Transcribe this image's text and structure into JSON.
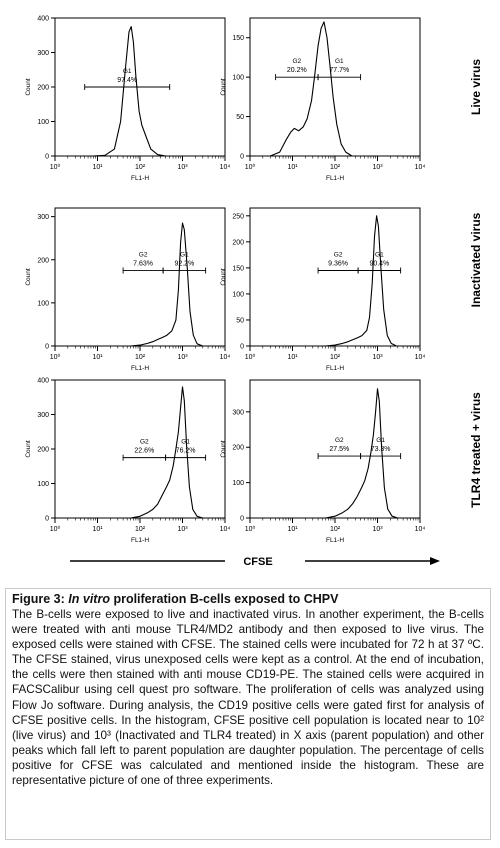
{
  "row_labels": [
    "Live virus",
    "Inactivated virus",
    "TLR4 treated + virus"
  ],
  "axis_caption": "CFSE",
  "colors": {
    "curve": "#000000",
    "axis": "#000000",
    "caption_border": "#c9c9c9"
  },
  "chart_data": [
    {
      "type": "area",
      "row": 0,
      "col": 0,
      "xlabel": "FL1-H",
      "ylabel": "Count",
      "xscale": "log",
      "xlim": [
        1,
        10000
      ],
      "ylim": [
        0,
        400
      ],
      "xticks": [
        "10^0",
        "10^1",
        "10^2",
        "10^3",
        "10^4"
      ],
      "yticks": [
        "0",
        "100",
        "200",
        "300",
        "400"
      ],
      "gates": [
        {
          "label": "G1",
          "percent": "97.4%",
          "range": [
            5,
            500
          ],
          "level": 200
        }
      ],
      "x": [
        8,
        15,
        25,
        35,
        45,
        55,
        62,
        70,
        80,
        95,
        110,
        140,
        180,
        260,
        400
      ],
      "y": [
        0,
        2,
        20,
        100,
        250,
        360,
        375,
        330,
        230,
        130,
        90,
        55,
        20,
        4,
        0
      ]
    },
    {
      "type": "area",
      "row": 0,
      "col": 1,
      "xlabel": "FL1-H",
      "ylabel": "Count",
      "xscale": "log",
      "xlim": [
        1,
        10000
      ],
      "ylim": [
        0,
        175
      ],
      "xticks": [
        "10^0",
        "10^1",
        "10^2",
        "10^3",
        "10^4"
      ],
      "yticks": [
        "0",
        "50",
        "100",
        "150"
      ],
      "gates": [
        {
          "label": "G2",
          "percent": "20.2%",
          "range": [
            4,
            40
          ],
          "level": 100
        },
        {
          "label": "G1",
          "percent": "77.7%",
          "range": [
            40,
            400
          ],
          "level": 100
        }
      ],
      "x": [
        3,
        5,
        7,
        9,
        11,
        14,
        18,
        22,
        28,
        33,
        40,
        47,
        55,
        65,
        75,
        90,
        110,
        140,
        180,
        250
      ],
      "y": [
        0,
        5,
        20,
        30,
        35,
        32,
        37,
        47,
        70,
        100,
        140,
        162,
        170,
        150,
        118,
        75,
        40,
        15,
        5,
        0
      ]
    },
    {
      "type": "area",
      "row": 1,
      "col": 0,
      "xlabel": "FL1-H",
      "ylabel": "Count",
      "xscale": "log",
      "xlim": [
        1,
        10000
      ],
      "ylim": [
        0,
        320
      ],
      "xticks": [
        "10^0",
        "10^1",
        "10^2",
        "10^3",
        "10^4"
      ],
      "yticks": [
        "0",
        "100",
        "200",
        "300"
      ],
      "gates": [
        {
          "label": "G2",
          "percent": "7.63%",
          "range": [
            40,
            350
          ],
          "level": 175
        },
        {
          "label": "G1",
          "percent": "92.2%",
          "range": [
            350,
            3500
          ],
          "level": 175
        }
      ],
      "x": [
        60,
        100,
        150,
        200,
        260,
        340,
        430,
        560,
        700,
        800,
        900,
        1000,
        1100,
        1300,
        1500,
        1800,
        2200,
        3000
      ],
      "y": [
        0,
        2,
        6,
        10,
        15,
        20,
        25,
        35,
        60,
        130,
        240,
        285,
        270,
        180,
        80,
        25,
        5,
        0
      ]
    },
    {
      "type": "area",
      "row": 1,
      "col": 1,
      "xlabel": "FL1-H",
      "ylabel": "Count",
      "xscale": "log",
      "xlim": [
        1,
        10000
      ],
      "ylim": [
        0,
        265
      ],
      "xticks": [
        "10^0",
        "10^1",
        "10^2",
        "10^3",
        "10^4"
      ],
      "yticks": [
        "0",
        "50",
        "100",
        "150",
        "200",
        "250"
      ],
      "gates": [
        {
          "label": "G2",
          "percent": "9.36%",
          "range": [
            40,
            350
          ],
          "level": 145
        },
        {
          "label": "G1",
          "percent": "90.4%",
          "range": [
            350,
            3500
          ],
          "level": 145
        }
      ],
      "x": [
        60,
        100,
        150,
        200,
        260,
        340,
        430,
        560,
        650,
        750,
        850,
        950,
        1050,
        1200,
        1400,
        1700,
        2100,
        2800
      ],
      "y": [
        0,
        2,
        5,
        8,
        12,
        16,
        20,
        30,
        55,
        120,
        210,
        250,
        230,
        150,
        70,
        20,
        5,
        0
      ]
    },
    {
      "type": "area",
      "row": 2,
      "col": 0,
      "xlabel": "FL1-H",
      "ylabel": "Count",
      "xscale": "log",
      "xlim": [
        1,
        10000
      ],
      "ylim": [
        0,
        400
      ],
      "xticks": [
        "10^0",
        "10^1",
        "10^2",
        "10^3",
        "10^4"
      ],
      "yticks": [
        "0",
        "100",
        "200",
        "300",
        "400"
      ],
      "gates": [
        {
          "label": "G2",
          "percent": "22.6%",
          "range": [
            40,
            400
          ],
          "level": 175
        },
        {
          "label": "G1",
          "percent": "76.2%",
          "range": [
            400,
            3500
          ],
          "level": 175
        }
      ],
      "x": [
        60,
        100,
        150,
        200,
        260,
        330,
        420,
        500,
        600,
        700,
        800,
        900,
        1000,
        1100,
        1250,
        1450,
        1750,
        2200,
        3000
      ],
      "y": [
        0,
        5,
        15,
        25,
        40,
        65,
        90,
        110,
        150,
        200,
        250,
        320,
        380,
        340,
        210,
        90,
        25,
        5,
        0
      ]
    },
    {
      "type": "area",
      "row": 2,
      "col": 1,
      "xlabel": "FL1-H",
      "ylabel": "Count",
      "xscale": "log",
      "xlim": [
        1,
        10000
      ],
      "ylim": [
        0,
        390
      ],
      "xticks": [
        "10^0",
        "10^1",
        "10^2",
        "10^3",
        "10^4"
      ],
      "yticks": [
        "0",
        "100",
        "200",
        "300"
      ],
      "gates": [
        {
          "label": "G2",
          "percent": "27.5%",
          "range": [
            40,
            400
          ],
          "level": 175
        },
        {
          "label": "G1",
          "percent": "73.3%",
          "range": [
            400,
            3500
          ],
          "level": 175
        }
      ],
      "x": [
        60,
        100,
        150,
        200,
        260,
        330,
        420,
        500,
        600,
        700,
        800,
        900,
        1000,
        1100,
        1250,
        1450,
        1750,
        2200,
        3000
      ],
      "y": [
        0,
        5,
        15,
        25,
        40,
        60,
        85,
        105,
        140,
        185,
        235,
        300,
        365,
        330,
        200,
        85,
        25,
        5,
        0
      ]
    }
  ],
  "caption": {
    "figure_label": "Figure 3:",
    "title_italic": "In vitro",
    "title_rest": "proliferation B-cells exposed to CHPV",
    "body": "The B-cells were exposed to live and inactivated virus. In another experiment, the B-cells were treated with anti mouse TLR4/MD2 antibody and then exposed to live virus.  The exposed cells were stained with CFSE. The stained cells were incubated for 72 h at 37 ºC. The CFSE stained, virus unexposed cells were kept as a control. At the end of incubation, the cells were then stained with anti mouse CD19-PE. The stained cells were acquired in FACSCalibur using cell quest pro software. The proliferation of cells was analyzed using Flow Jo software. During analysis, the CD19 positive cells were gated first for analysis of CFSE positive cells. In the histogram, CFSE positive cell population is located near to 10² (live virus) and 10³ (Inactivated and TLR4 treated) in X axis (parent population) and other peaks which fall left to parent population are daughter population. The percentage of cells positive for CFSE was calculated and mentioned inside the histogram. These are representative picture of one of three experiments."
  }
}
